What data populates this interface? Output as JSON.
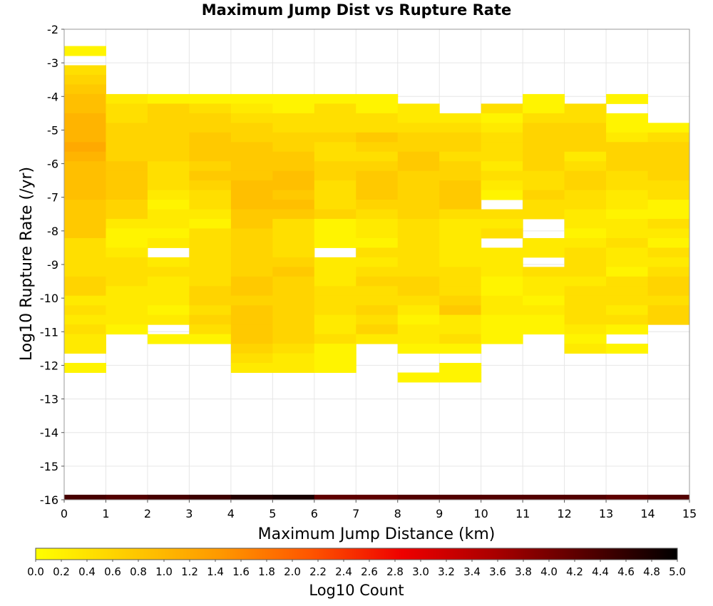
{
  "chart_data": {
    "type": "heatmap",
    "title": "Maximum Jump Dist vs Rupture Rate",
    "xlabel": "Maximum Jump Distance (km)",
    "ylabel": "Log10 Rupture Rate (/yr)",
    "xlim": [
      0,
      15
    ],
    "ylim": [
      -16,
      -2
    ],
    "x_ticks": [
      "0",
      "1",
      "2",
      "3",
      "4",
      "5",
      "6",
      "7",
      "8",
      "9",
      "10",
      "11",
      "12",
      "13",
      "14",
      "15"
    ],
    "y_ticks": [
      "-2",
      "-3",
      "-4",
      "-5",
      "-6",
      "-7",
      "-8",
      "-9",
      "-10",
      "-11",
      "-12",
      "-13",
      "-14",
      "-15",
      "-16"
    ],
    "x_bin_width": 1,
    "y_bin_height": 0.2857,
    "y_bin_count": 49,
    "bins_note_unit": "Log10 Count",
    "columns": [
      {
        "x": 0.5,
        "y_bins": [
          1,
          null,
          3,
          4,
          5,
          6,
          6,
          7,
          7,
          7,
          8,
          7,
          6,
          6,
          6,
          6,
          5,
          5,
          5,
          5,
          3,
          3,
          3,
          3,
          4,
          4,
          2,
          3,
          2,
          3,
          2,
          2,
          null,
          1
        ]
      },
      {
        "x": 1.5,
        "y_bins": [
          null,
          null,
          null,
          null,
          null,
          2,
          3,
          3,
          4,
          4,
          4,
          4,
          5,
          5,
          5,
          5,
          4,
          4,
          2,
          1,
          1,
          2,
          3,
          3,
          3,
          2,
          2,
          2,
          2,
          1,
          null
        ]
      },
      {
        "x": 2.5,
        "y_bins": [
          null,
          null,
          null,
          null,
          null,
          1,
          4,
          4,
          4,
          4,
          4,
          4,
          3,
          3,
          3,
          2,
          1,
          2,
          2,
          1,
          2,
          null,
          2,
          3,
          2,
          2,
          2,
          1,
          2,
          null,
          1
        ]
      },
      {
        "x": 3.5,
        "y_bins": [
          null,
          null,
          null,
          null,
          null,
          1,
          3,
          4,
          4,
          5,
          5,
          5,
          4,
          5,
          4,
          3,
          3,
          2,
          1,
          3,
          3,
          3,
          3,
          3,
          3,
          4,
          4,
          3,
          4,
          3,
          1
        ]
      },
      {
        "x": 4.5,
        "y_bins": [
          null,
          null,
          null,
          null,
          null,
          1,
          2,
          3,
          4,
          4,
          5,
          5,
          5,
          5,
          6,
          6,
          6,
          5,
          5,
          4,
          4,
          4,
          4,
          4,
          5,
          5,
          4,
          5,
          5,
          5,
          5,
          4,
          3,
          2
        ]
      },
      {
        "x": 5.5,
        "y_bins": [
          null,
          null,
          null,
          null,
          null,
          1,
          1,
          3,
          3,
          4,
          4,
          5,
          5,
          6,
          6,
          5,
          6,
          5,
          3,
          3,
          3,
          3,
          4,
          5,
          4,
          4,
          4,
          4,
          4,
          4,
          4,
          3,
          2,
          2
        ]
      },
      {
        "x": 6.5,
        "y_bins": [
          null,
          null,
          null,
          null,
          null,
          1,
          3,
          3,
          3,
          4,
          3,
          3,
          4,
          4,
          3,
          3,
          3,
          4,
          1,
          1,
          1,
          null,
          2,
          2,
          2,
          3,
          3,
          3,
          2,
          2,
          3,
          1,
          1,
          1
        ]
      },
      {
        "x": 7.5,
        "y_bins": [
          null,
          null,
          null,
          null,
          null,
          1,
          1,
          3,
          3,
          5,
          4,
          3,
          4,
          5,
          5,
          5,
          4,
          3,
          2,
          2,
          1,
          3,
          2,
          3,
          4,
          3,
          3,
          4,
          3,
          4,
          2
        ]
      },
      {
        "x": 8.5,
        "y_bins": [
          null,
          null,
          null,
          null,
          null,
          null,
          2,
          2,
          3,
          4,
          4,
          5,
          5,
          4,
          4,
          4,
          4,
          4,
          3,
          3,
          3,
          3,
          3,
          3,
          4,
          4,
          3,
          2,
          1,
          2,
          2,
          1,
          null,
          null,
          1
        ]
      },
      {
        "x": 9.5,
        "y_bins": [
          null,
          null,
          null,
          null,
          null,
          null,
          null,
          2,
          3,
          4,
          4,
          3,
          4,
          4,
          5,
          5,
          5,
          3,
          2,
          2,
          2,
          2,
          2,
          3,
          3,
          3,
          4,
          5,
          2,
          2,
          3,
          1,
          null,
          1,
          1
        ]
      },
      {
        "x": 10.5,
        "y_bins": [
          null,
          null,
          null,
          null,
          null,
          null,
          3,
          1,
          2,
          3,
          3,
          3,
          2,
          3,
          2,
          1,
          null,
          3,
          2,
          3,
          null,
          2,
          2,
          2,
          1,
          1,
          2,
          2,
          1,
          1,
          1
        ]
      },
      {
        "x": 11.5,
        "y_bins": [
          null,
          null,
          null,
          null,
          null,
          1,
          1,
          3,
          4,
          4,
          4,
          4,
          4,
          3,
          3,
          4,
          3,
          3,
          null,
          null,
          2,
          2,
          null,
          3,
          2,
          2,
          1,
          2,
          1,
          1
        ]
      },
      {
        "x": 12.5,
        "y_bins": [
          null,
          null,
          null,
          null,
          null,
          null,
          3,
          3,
          4,
          4,
          4,
          2,
          3,
          4,
          4,
          3,
          3,
          2,
          2,
          1,
          2,
          3,
          3,
          3,
          2,
          3,
          3,
          3,
          3,
          2,
          1,
          2
        ]
      },
      {
        "x": 13.5,
        "y_bins": [
          null,
          null,
          null,
          null,
          null,
          1,
          null,
          1,
          1,
          2,
          4,
          4,
          4,
          3,
          3,
          2,
          2,
          1,
          2,
          2,
          3,
          2,
          2,
          1,
          3,
          3,
          3,
          2,
          3,
          1,
          null,
          1
        ]
      },
      {
        "x": 14.5,
        "y_bins": [
          null,
          null,
          null,
          null,
          null,
          null,
          null,
          null,
          1,
          3,
          4,
          4,
          4,
          4,
          3,
          3,
          1,
          1,
          3,
          2,
          1,
          3,
          2,
          3,
          4,
          4,
          3,
          4,
          4
        ]
      }
    ],
    "baseline_row": {
      "y": -16,
      "values": [
        4.4,
        4.3,
        4.4,
        4.5,
        4.7,
        4.8,
        4.2,
        4.2,
        4.3,
        4.3,
        4.3,
        4.3,
        4.3,
        4.2,
        4.3
      ]
    },
    "colorbar": {
      "label": "Log10 Count",
      "min": 0.0,
      "max": 5.0,
      "ticks": [
        "0.0",
        "0.2",
        "0.4",
        "0.6",
        "0.8",
        "1.0",
        "1.2",
        "1.4",
        "1.6",
        "1.8",
        "2.0",
        "2.2",
        "2.4",
        "2.6",
        "2.8",
        "3.0",
        "3.2",
        "3.4",
        "3.6",
        "3.8",
        "4.0",
        "4.2",
        "4.4",
        "4.6",
        "4.8",
        "5.0"
      ],
      "stops": [
        "#ffff00",
        "#ffcc00",
        "#ff9900",
        "#ff5500",
        "#ee0000",
        "#aa0000",
        "#550000",
        "#000000"
      ]
    },
    "level_values": [
      0.15,
      0.3,
      0.45,
      0.6,
      0.75,
      0.9,
      1.05,
      1.2
    ],
    "grid": true,
    "legend": "colorbar-bottom"
  }
}
